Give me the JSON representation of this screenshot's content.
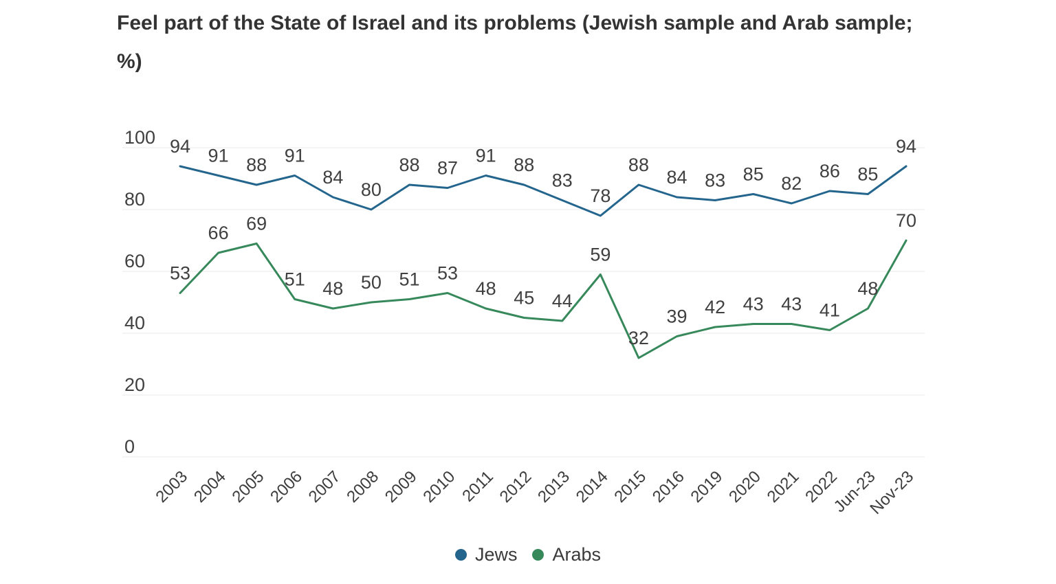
{
  "header": {
    "title_line1": "Feel part of the State of Israel and its problems (Jewish sample and Arab sample;",
    "title_line2": "%)"
  },
  "chart_data": {
    "type": "line",
    "title": "Feel part of the State of Israel and its problems (Jewish sample and Arab sample; %)",
    "categories": [
      "2003",
      "2004",
      "2005",
      "2006",
      "2007",
      "2008",
      "2009",
      "2010",
      "2011",
      "2012",
      "2013",
      "2014",
      "2015",
      "2016",
      "2019",
      "2020",
      "2021",
      "2022",
      "Jun-23",
      "Nov-23"
    ],
    "series": [
      {
        "name": "Jews",
        "color": "#24658d",
        "values": [
          94,
          91,
          88,
          91,
          84,
          80,
          88,
          87,
          91,
          88,
          83,
          78,
          88,
          84,
          83,
          85,
          82,
          86,
          85,
          94
        ]
      },
      {
        "name": "Arabs",
        "color": "#37895c",
        "values": [
          53,
          66,
          69,
          51,
          48,
          50,
          51,
          53,
          48,
          45,
          44,
          59,
          32,
          39,
          42,
          43,
          43,
          41,
          48,
          70
        ]
      }
    ],
    "xlabel": "",
    "ylabel": "",
    "ylim": [
      0,
      100
    ],
    "yticks": [
      0,
      20,
      40,
      60,
      80,
      100
    ],
    "grid": true,
    "data_labels": true,
    "legend_position": "bottom",
    "colors": {
      "grid": "#e8e8e8",
      "tick_text": "#404040",
      "title_text": "#333333"
    }
  }
}
